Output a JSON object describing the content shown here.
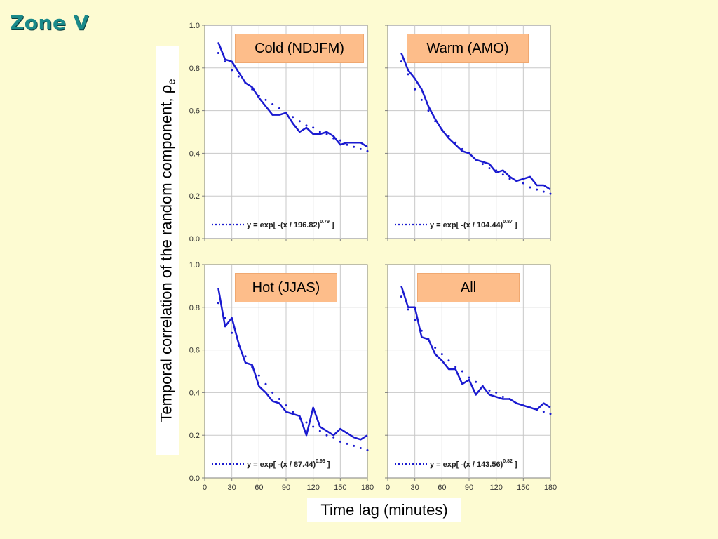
{
  "slide": {
    "title": "Zone V",
    "ylabel": "Temporal correlation of the random component, ρ",
    "ylabel_sub": "e",
    "xlabel": "Time lag (minutes)"
  },
  "colors": {
    "series": "#1a1ad0",
    "background": "#fdfbd2",
    "title": "#1a8a8a",
    "label_box": "#fdbd8a"
  },
  "chart_data": [
    {
      "type": "line",
      "label": "Cold (NDJFM)",
      "ylim": [
        0,
        1.0
      ],
      "xlim": [
        0,
        180
      ],
      "yticks": [
        "0.0",
        "0.2",
        "0.4",
        "0.6",
        "0.8",
        "1.0"
      ],
      "xticks": [],
      "grid": true,
      "legend": {
        "prefix": "y = exp[ -(x / 196.82)",
        "exponent": "0.79",
        "suffix": " ]"
      },
      "series": [
        {
          "style": "solid",
          "x": [
            15,
            22.5,
            30,
            37.5,
            45,
            52.5,
            60,
            67.5,
            75,
            82.5,
            90,
            97.5,
            105,
            112.5,
            120,
            127.5,
            135,
            142.5,
            150,
            157.5,
            165,
            172.5,
            180
          ],
          "y": [
            0.92,
            0.84,
            0.83,
            0.78,
            0.73,
            0.71,
            0.66,
            0.62,
            0.58,
            0.58,
            0.59,
            0.54,
            0.5,
            0.52,
            0.49,
            0.49,
            0.5,
            0.48,
            0.44,
            0.45,
            0.45,
            0.45,
            0.43
          ]
        },
        {
          "style": "dotted",
          "x": [
            15,
            22.5,
            30,
            37.5,
            45,
            52.5,
            60,
            67.5,
            75,
            82.5,
            90,
            97.5,
            105,
            112.5,
            120,
            127.5,
            135,
            142.5,
            150,
            157.5,
            165,
            172.5,
            180
          ],
          "y": [
            0.87,
            0.83,
            0.79,
            0.76,
            0.73,
            0.7,
            0.67,
            0.65,
            0.63,
            0.61,
            0.59,
            0.57,
            0.55,
            0.53,
            0.52,
            0.5,
            0.49,
            0.47,
            0.46,
            0.44,
            0.43,
            0.42,
            0.41
          ]
        }
      ]
    },
    {
      "type": "line",
      "label": "Warm (AMO)",
      "ylim": [
        0,
        1.0
      ],
      "xlim": [
        0,
        180
      ],
      "yticks": [],
      "xticks": [],
      "grid": true,
      "legend": {
        "prefix": "y = exp[ -(x / 104.44)",
        "exponent": "0.87",
        "suffix": " ]"
      },
      "series": [
        {
          "style": "solid",
          "x": [
            15,
            22.5,
            30,
            37.5,
            45,
            52.5,
            60,
            67.5,
            75,
            82.5,
            90,
            97.5,
            105,
            112.5,
            120,
            127.5,
            135,
            142.5,
            150,
            157.5,
            165,
            172.5,
            180
          ],
          "y": [
            0.87,
            0.79,
            0.75,
            0.7,
            0.62,
            0.56,
            0.51,
            0.47,
            0.44,
            0.41,
            0.4,
            0.37,
            0.36,
            0.35,
            0.31,
            0.32,
            0.29,
            0.27,
            0.28,
            0.29,
            0.25,
            0.25,
            0.23
          ]
        },
        {
          "style": "dotted",
          "x": [
            15,
            22.5,
            30,
            37.5,
            45,
            52.5,
            60,
            67.5,
            75,
            82.5,
            90,
            97.5,
            105,
            112.5,
            120,
            127.5,
            135,
            142.5,
            150,
            157.5,
            165,
            172.5,
            180
          ],
          "y": [
            0.83,
            0.77,
            0.7,
            0.65,
            0.6,
            0.55,
            0.51,
            0.48,
            0.45,
            0.42,
            0.4,
            0.37,
            0.35,
            0.33,
            0.32,
            0.3,
            0.28,
            0.27,
            0.26,
            0.24,
            0.23,
            0.22,
            0.21
          ]
        }
      ]
    },
    {
      "type": "line",
      "label": "Hot (JJAS)",
      "ylim": [
        0,
        1.0
      ],
      "xlim": [
        0,
        180
      ],
      "yticks": [
        "0.0",
        "0.2",
        "0.4",
        "0.6",
        "0.8",
        "1.0"
      ],
      "xticks": [
        "0",
        "30",
        "60",
        "90",
        "120",
        "150",
        "180"
      ],
      "grid": true,
      "legend": {
        "prefix": "y = exp[ -(x / 87.44)",
        "exponent": "0.93",
        "suffix": " ]"
      },
      "series": [
        {
          "style": "solid",
          "x": [
            15,
            22.5,
            30,
            37.5,
            45,
            52.5,
            60,
            67.5,
            75,
            82.5,
            90,
            97.5,
            105,
            112.5,
            120,
            127.5,
            135,
            142.5,
            150,
            157.5,
            165,
            172.5,
            180
          ],
          "y": [
            0.89,
            0.71,
            0.75,
            0.63,
            0.54,
            0.53,
            0.43,
            0.4,
            0.36,
            0.35,
            0.31,
            0.3,
            0.29,
            0.2,
            0.33,
            0.24,
            0.22,
            0.2,
            0.23,
            0.21,
            0.19,
            0.18,
            0.2
          ]
        },
        {
          "style": "dotted",
          "x": [
            15,
            22.5,
            30,
            37.5,
            45,
            52.5,
            60,
            67.5,
            75,
            82.5,
            90,
            97.5,
            105,
            112.5,
            120,
            127.5,
            135,
            142.5,
            150,
            157.5,
            165,
            172.5,
            180
          ],
          "y": [
            0.82,
            0.75,
            0.68,
            0.62,
            0.57,
            0.52,
            0.48,
            0.44,
            0.4,
            0.37,
            0.34,
            0.31,
            0.28,
            0.26,
            0.24,
            0.22,
            0.2,
            0.19,
            0.17,
            0.16,
            0.15,
            0.14,
            0.13
          ]
        }
      ]
    },
    {
      "type": "line",
      "label": "All",
      "ylim": [
        0,
        1.0
      ],
      "xlim": [
        0,
        180
      ],
      "yticks": [],
      "xticks": [
        "0",
        "30",
        "60",
        "90",
        "120",
        "150",
        "180"
      ],
      "grid": true,
      "legend": {
        "prefix": "y = exp[ -(x / 143.56)",
        "exponent": "0.82",
        "suffix": " ]"
      },
      "series": [
        {
          "style": "solid",
          "x": [
            15,
            22.5,
            30,
            37.5,
            45,
            52.5,
            60,
            67.5,
            75,
            82.5,
            90,
            97.5,
            105,
            112.5,
            120,
            127.5,
            135,
            142.5,
            150,
            157.5,
            165,
            172.5,
            180
          ],
          "y": [
            0.9,
            0.8,
            0.8,
            0.66,
            0.65,
            0.58,
            0.55,
            0.51,
            0.51,
            0.44,
            0.46,
            0.39,
            0.43,
            0.39,
            0.38,
            0.37,
            0.37,
            0.35,
            0.34,
            0.33,
            0.32,
            0.35,
            0.33
          ]
        },
        {
          "style": "dotted",
          "x": [
            15,
            22.5,
            30,
            37.5,
            45,
            52.5,
            60,
            67.5,
            75,
            82.5,
            90,
            97.5,
            105,
            112.5,
            120,
            127.5,
            135,
            142.5,
            150,
            157.5,
            165,
            172.5,
            180
          ],
          "y": [
            0.85,
            0.79,
            0.74,
            0.69,
            0.65,
            0.61,
            0.58,
            0.55,
            0.52,
            0.5,
            0.47,
            0.45,
            0.43,
            0.41,
            0.4,
            0.38,
            0.37,
            0.35,
            0.34,
            0.33,
            0.32,
            0.31,
            0.3
          ]
        }
      ]
    }
  ]
}
